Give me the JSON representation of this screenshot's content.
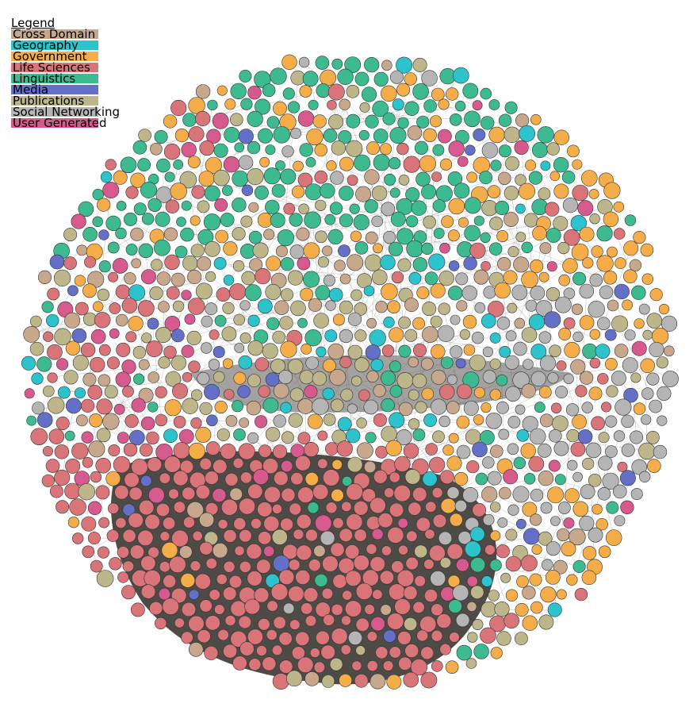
{
  "legend": {
    "title": "Legend",
    "items": [
      {
        "label": "Cross Domain",
        "color": "#c8a88d"
      },
      {
        "label": "Geography",
        "color": "#2cc3cd"
      },
      {
        "label": "Government",
        "color": "#f5ad4a"
      },
      {
        "label": "Life Sciences",
        "color": "#d97478"
      },
      {
        "label": "Linguistics",
        "color": "#3dba8f"
      },
      {
        "label": "Media",
        "color": "#6470c8"
      },
      {
        "label": "Publications",
        "color": "#bdb68a"
      },
      {
        "label": "Social Networking",
        "color": "#b5b5b5"
      },
      {
        "label": "User Generated",
        "color": "#d65a8e"
      }
    ]
  },
  "diagram": {
    "type": "network-graph",
    "edge_color": "#555555",
    "node_stroke": "#333333"
  }
}
